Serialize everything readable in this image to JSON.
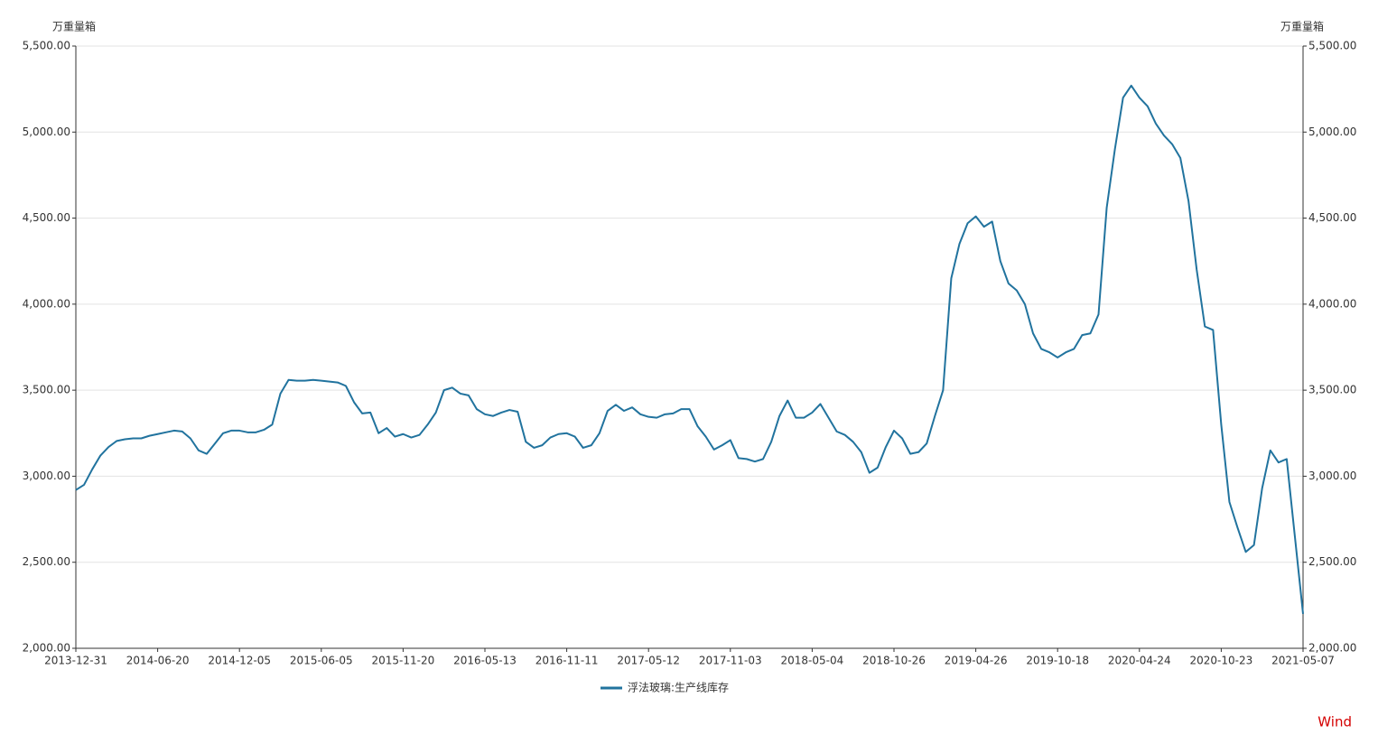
{
  "chart_data": {
    "type": "line",
    "y_label": "万重量箱",
    "y2_label": "万重量箱",
    "source": "Wind",
    "categories": [
      "2013-12-31",
      null,
      null,
      null,
      null,
      null,
      null,
      null,
      null,
      null,
      "2014-06-20",
      null,
      null,
      null,
      null,
      null,
      null,
      null,
      null,
      null,
      "2014-12-05",
      null,
      null,
      null,
      null,
      null,
      null,
      null,
      null,
      null,
      "2015-06-05",
      null,
      null,
      null,
      null,
      null,
      null,
      null,
      null,
      null,
      "2015-11-20",
      null,
      null,
      null,
      null,
      null,
      null,
      null,
      null,
      null,
      "2016-05-13",
      null,
      null,
      null,
      null,
      null,
      null,
      null,
      null,
      null,
      "2016-11-11",
      null,
      null,
      null,
      null,
      null,
      null,
      null,
      null,
      null,
      "2017-05-12",
      null,
      null,
      null,
      null,
      null,
      null,
      null,
      null,
      null,
      "2017-11-03",
      null,
      null,
      null,
      null,
      null,
      null,
      null,
      null,
      null,
      "2018-05-04",
      null,
      null,
      null,
      null,
      null,
      null,
      null,
      null,
      null,
      "2018-10-26",
      null,
      null,
      null,
      null,
      null,
      null,
      null,
      null,
      null,
      "2019-04-26",
      null,
      null,
      null,
      null,
      null,
      null,
      null,
      null,
      null,
      "2019-10-18",
      null,
      null,
      null,
      null,
      null,
      null,
      null,
      null,
      null,
      "2020-04-24",
      null,
      null,
      null,
      null,
      null,
      null,
      null,
      null,
      null,
      "2020-10-23",
      null,
      null,
      null,
      null,
      null,
      null,
      null,
      null,
      null,
      "2021-05-07"
    ],
    "series": [
      {
        "name": "浮法玻璃:生产线库存",
        "color": "#21739e",
        "values": [
          2920,
          2950,
          3040,
          3120,
          3170,
          3205,
          3215,
          3220,
          3220,
          3235,
          3245,
          3255,
          3265,
          3260,
          3220,
          3150,
          3130,
          3190,
          3250,
          3265,
          3265,
          3255,
          3255,
          3270,
          3300,
          3480,
          3560,
          3555,
          3555,
          3560,
          3555,
          3550,
          3545,
          3525,
          3430,
          3365,
          3370,
          3250,
          3280,
          3230,
          3245,
          3225,
          3240,
          3300,
          3370,
          3500,
          3515,
          3480,
          3470,
          3390,
          3360,
          3350,
          3370,
          3385,
          3375,
          3200,
          3165,
          3180,
          3225,
          3245,
          3250,
          3230,
          3165,
          3180,
          3250,
          3380,
          3415,
          3380,
          3400,
          3360,
          3345,
          3340,
          3360,
          3365,
          3390,
          3390,
          3290,
          3230,
          3155,
          3180,
          3210,
          3105,
          3100,
          3085,
          3100,
          3200,
          3350,
          3440,
          3340,
          3340,
          3370,
          3420,
          3340,
          3260,
          3240,
          3200,
          3140,
          3020,
          3050,
          3170,
          3265,
          3220,
          3130,
          3140,
          3190,
          3350,
          3500,
          4150,
          4350,
          4470,
          4510,
          4450,
          4480,
          4250,
          4120,
          4080,
          4000,
          3830,
          3740,
          3720,
          3690,
          3720,
          3740,
          3820,
          3830,
          3940,
          4560,
          4900,
          5200,
          5270,
          5200,
          5150,
          5050,
          4980,
          4930,
          4850,
          4600,
          4200,
          3870,
          3850,
          3300,
          2850,
          2700,
          2560,
          2600,
          2930,
          3150,
          3080,
          3100,
          2650,
          2200
        ]
      }
    ],
    "ylim": [
      2000,
      5500
    ],
    "yticks": [
      {
        "value": 2000,
        "label": "2,000.00"
      },
      {
        "value": 2500,
        "label": "2,500.00"
      },
      {
        "value": 3000,
        "label": "3,000.00"
      },
      {
        "value": 3500,
        "label": "3,500.00"
      },
      {
        "value": 4000,
        "label": "4,000.00"
      },
      {
        "value": 4500,
        "label": "4,500.00"
      },
      {
        "value": 5000,
        "label": "5,000.00"
      },
      {
        "value": 5500,
        "label": "5,500.00"
      }
    ],
    "y2lim": [
      2000,
      5500
    ],
    "y2ticks": [
      {
        "value": 2000,
        "label": "2,000.00"
      },
      {
        "value": 2500,
        "label": "2,500.00"
      },
      {
        "value": 3000,
        "label": "3,000.00"
      },
      {
        "value": 3500,
        "label": "3,500.00"
      },
      {
        "value": 4000,
        "label": "4,000.00"
      },
      {
        "value": 4500,
        "label": "4,500.00"
      },
      {
        "value": 5000,
        "label": "5,000.00"
      },
      {
        "value": 5500,
        "label": "5,500.00"
      }
    ],
    "grid": true,
    "legend": "bottom"
  }
}
